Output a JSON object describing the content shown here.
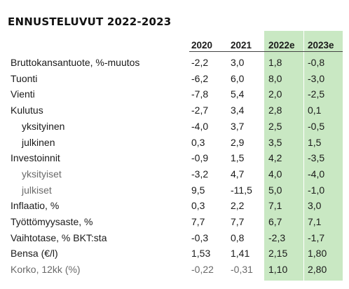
{
  "title": "ENNUSTELUVUT 2022-2023",
  "columns": [
    "2020",
    "2021",
    "2022e",
    "2023e"
  ],
  "rows": [
    {
      "label": "Bruttokansantuote, %-muutos",
      "values": [
        "-2,2",
        "3,0",
        "1,8",
        "-0,8"
      ]
    },
    {
      "label": "Tuonti",
      "values": [
        "-6,2",
        "6,0",
        "8,0",
        "-3,0"
      ]
    },
    {
      "label": "Vienti",
      "values": [
        "-7,8",
        "5,4",
        "2,0",
        "-2,5"
      ]
    },
    {
      "label": "Kulutus",
      "values": [
        "-2,7",
        "3,4",
        "2,8",
        "0,1"
      ]
    },
    {
      "label": "yksityinen",
      "values": [
        "-4,0",
        "3,7",
        "2,5",
        "-0,5"
      ]
    },
    {
      "label": "julkinen",
      "values": [
        "0,3",
        "2,9",
        "3,5",
        "1,5"
      ]
    },
    {
      "label": "Investoinnit",
      "values": [
        "-0,9",
        "1,5",
        "4,2",
        "-3,5"
      ]
    },
    {
      "label": "yksityiset",
      "values": [
        "-3,2",
        "4,7",
        "4,0",
        "-4,0"
      ]
    },
    {
      "label": "julkiset",
      "values": [
        "9,5",
        "-11,5",
        "5,0",
        "-1,0"
      ]
    },
    {
      "label": "Inflaatio, %",
      "values": [
        "0,3",
        "2,2",
        "7,1",
        "3,0"
      ]
    },
    {
      "label": "Työttömyysaste, %",
      "values": [
        "7,7",
        "7,7",
        "6,7",
        "7,1"
      ]
    },
    {
      "label": "Vaihtotase, % BKT:sta",
      "values": [
        "-0,3",
        "0,8",
        "-2,3",
        "-1,7"
      ]
    },
    {
      "label": "Bensa (€/l)",
      "values": [
        "1,53",
        "1,41",
        "2,15",
        "1,80"
      ]
    },
    {
      "label": "Korko, 12kk (%)",
      "values": [
        "-0,22",
        "-0,31",
        "1,10",
        "2,80"
      ]
    }
  ],
  "colors": {
    "forecast_highlight": "#c9e8c3",
    "muted_text": "#6a6a6a"
  }
}
